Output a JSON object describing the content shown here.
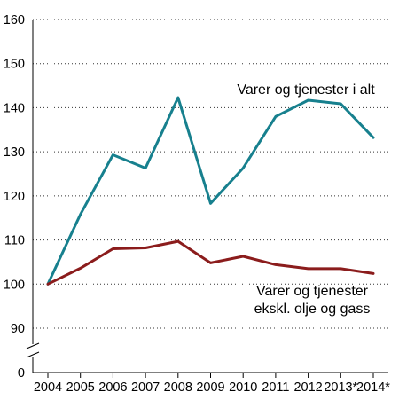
{
  "chart_data": {
    "type": "line",
    "title": "",
    "xlabel": "",
    "ylabel": "",
    "categories": [
      "2004",
      "2005",
      "2006",
      "2007",
      "2008",
      "2009",
      "2010",
      "2011",
      "2012",
      "2013*",
      "2014*"
    ],
    "yticks": [
      "90",
      "100",
      "110",
      "120",
      "130",
      "140",
      "150",
      "160"
    ],
    "ylim": [
      90,
      160
    ],
    "y_axis_break": true,
    "y_axis_zero_label": "0",
    "grid": "horizontal, dotted",
    "legend": "none",
    "series": [
      {
        "name": "Varer og tjenester i alt",
        "color": "#17808e",
        "values": [
          100,
          115.8,
          129.3,
          126.3,
          142.3,
          118.3,
          126.3,
          138.0,
          141.7,
          140.9,
          133.2
        ]
      },
      {
        "name": "Varer og tjenester ekskl. olje og gass",
        "color": "#8b1c1c",
        "values": [
          100,
          103.6,
          108.0,
          108.2,
          109.7,
          104.8,
          106.3,
          104.4,
          103.5,
          103.5,
          102.4
        ]
      }
    ],
    "annotations": [
      {
        "lines": [
          "Varer og tjenester i alt"
        ]
      },
      {
        "lines": [
          "Varer og tjenester",
          "ekskl. olje og gass"
        ]
      }
    ]
  }
}
